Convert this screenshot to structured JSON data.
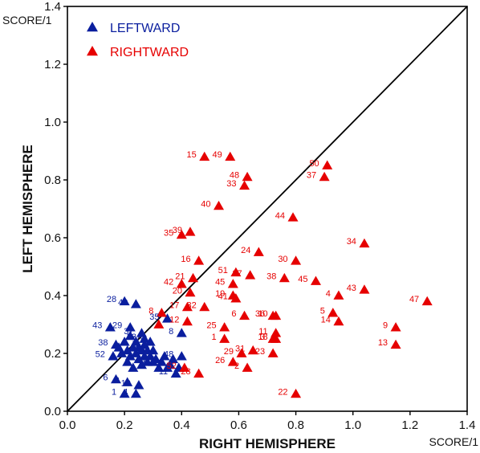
{
  "chart_data": {
    "type": "scatter",
    "xlabel": "RIGHT HEMISPHERE",
    "ylabel": "LEFT HEMISPHERE",
    "x_unit": "SCORE/1",
    "y_unit": "SCORE/1",
    "xlim": [
      0.0,
      1.4
    ],
    "ylim": [
      0.0,
      1.4
    ],
    "x_ticks": [
      "0.0",
      "0.2",
      "0.4",
      "0.6",
      "0.8",
      "1.0",
      "1.2",
      "1.4"
    ],
    "y_ticks": [
      "0.0",
      "0.2",
      "0.4",
      "0.6",
      "0.8",
      "1.0",
      "1.2",
      "1.4"
    ],
    "grid": false,
    "diagonal_line": true,
    "legend_position": "top-left",
    "series": [
      {
        "name": "LEFTWARD",
        "color": "#0a1e9e",
        "marker": "triangle",
        "points": [
          {
            "x": 0.2,
            "y": 0.38,
            "label": "28"
          },
          {
            "x": 0.24,
            "y": 0.37,
            "label": "40"
          },
          {
            "x": 0.35,
            "y": 0.32,
            "label": "35"
          },
          {
            "x": 0.15,
            "y": 0.29,
            "label": "43"
          },
          {
            "x": 0.22,
            "y": 0.29,
            "label": "29"
          },
          {
            "x": 0.26,
            "y": 0.27,
            "label": "37"
          },
          {
            "x": 0.27,
            "y": 0.25,
            "label": "33"
          },
          {
            "x": 0.29,
            "y": 0.24,
            "label": "30"
          },
          {
            "x": 0.4,
            "y": 0.27,
            "label": "8"
          },
          {
            "x": 0.17,
            "y": 0.23,
            "label": "38"
          },
          {
            "x": 0.3,
            "y": 0.21,
            "label": "20"
          },
          {
            "x": 0.16,
            "y": 0.19,
            "label": "52"
          },
          {
            "x": 0.34,
            "y": 0.19,
            "label": "15"
          },
          {
            "x": 0.4,
            "y": 0.19,
            "label": "48"
          },
          {
            "x": 0.3,
            "y": 0.17,
            "label": "5"
          },
          {
            "x": 0.36,
            "y": 0.16,
            "label": "2"
          },
          {
            "x": 0.17,
            "y": 0.11,
            "label": "6"
          },
          {
            "x": 0.21,
            "y": 0.1,
            "label": "3"
          },
          {
            "x": 0.25,
            "y": 0.09,
            "label": "19"
          },
          {
            "x": 0.2,
            "y": 0.06,
            "label": "1"
          },
          {
            "x": 0.24,
            "y": 0.06,
            "label": "4"
          },
          {
            "x": 0.38,
            "y": 0.13,
            "label": "11"
          },
          {
            "x": 0.18,
            "y": 0.22
          },
          {
            "x": 0.19,
            "y": 0.2
          },
          {
            "x": 0.2,
            "y": 0.24
          },
          {
            "x": 0.21,
            "y": 0.21
          },
          {
            "x": 0.21,
            "y": 0.17
          },
          {
            "x": 0.22,
            "y": 0.19
          },
          {
            "x": 0.22,
            "y": 0.26
          },
          {
            "x": 0.23,
            "y": 0.22
          },
          {
            "x": 0.23,
            "y": 0.15
          },
          {
            "x": 0.24,
            "y": 0.2
          },
          {
            "x": 0.24,
            "y": 0.24
          },
          {
            "x": 0.25,
            "y": 0.18
          },
          {
            "x": 0.25,
            "y": 0.22
          },
          {
            "x": 0.26,
            "y": 0.16
          },
          {
            "x": 0.26,
            "y": 0.21
          },
          {
            "x": 0.27,
            "y": 0.19
          },
          {
            "x": 0.27,
            "y": 0.23
          },
          {
            "x": 0.28,
            "y": 0.17
          },
          {
            "x": 0.28,
            "y": 0.21
          },
          {
            "x": 0.29,
            "y": 0.19
          },
          {
            "x": 0.31,
            "y": 0.18
          },
          {
            "x": 0.32,
            "y": 0.15
          },
          {
            "x": 0.33,
            "y": 0.17
          },
          {
            "x": 0.35,
            "y": 0.15
          },
          {
            "x": 0.37,
            "y": 0.18
          },
          {
            "x": 0.39,
            "y": 0.15
          }
        ]
      },
      {
        "name": "RIGHTWARD",
        "color": "#e60000",
        "marker": "triangle",
        "points": [
          {
            "x": 0.48,
            "y": 0.88,
            "label": "15"
          },
          {
            "x": 0.57,
            "y": 0.88,
            "label": "49"
          },
          {
            "x": 0.91,
            "y": 0.85,
            "label": "50"
          },
          {
            "x": 0.9,
            "y": 0.81,
            "label": "37"
          },
          {
            "x": 0.63,
            "y": 0.81,
            "label": "48"
          },
          {
            "x": 0.62,
            "y": 0.78,
            "label": "33"
          },
          {
            "x": 0.53,
            "y": 0.71,
            "label": "40"
          },
          {
            "x": 0.79,
            "y": 0.67,
            "label": "44"
          },
          {
            "x": 0.43,
            "y": 0.62,
            "label": "39"
          },
          {
            "x": 0.4,
            "y": 0.61,
            "label": "35"
          },
          {
            "x": 1.04,
            "y": 0.58,
            "label": "34"
          },
          {
            "x": 0.67,
            "y": 0.55,
            "label": "24"
          },
          {
            "x": 0.8,
            "y": 0.52,
            "label": "30"
          },
          {
            "x": 0.46,
            "y": 0.52,
            "label": "16"
          },
          {
            "x": 0.59,
            "y": 0.48,
            "label": "51"
          },
          {
            "x": 0.64,
            "y": 0.47,
            "label": "27"
          },
          {
            "x": 0.76,
            "y": 0.46,
            "label": "38"
          },
          {
            "x": 0.87,
            "y": 0.45,
            "label": "45"
          },
          {
            "x": 0.44,
            "y": 0.46,
            "label": "21"
          },
          {
            "x": 0.4,
            "y": 0.44,
            "label": "42"
          },
          {
            "x": 0.58,
            "y": 0.44,
            "label": "45"
          },
          {
            "x": 0.43,
            "y": 0.41,
            "label": "20"
          },
          {
            "x": 1.04,
            "y": 0.42,
            "label": "43"
          },
          {
            "x": 0.58,
            "y": 0.4,
            "label": "19"
          },
          {
            "x": 0.59,
            "y": 0.39,
            "label": "41"
          },
          {
            "x": 0.95,
            "y": 0.4,
            "label": "4"
          },
          {
            "x": 1.26,
            "y": 0.38,
            "label": "47"
          },
          {
            "x": 0.42,
            "y": 0.36,
            "label": "17"
          },
          {
            "x": 0.48,
            "y": 0.36,
            "label": "32"
          },
          {
            "x": 0.33,
            "y": 0.34,
            "label": "8"
          },
          {
            "x": 0.93,
            "y": 0.34,
            "label": "5"
          },
          {
            "x": 0.62,
            "y": 0.33,
            "label": "6"
          },
          {
            "x": 0.72,
            "y": 0.33,
            "label": "36"
          },
          {
            "x": 0.73,
            "y": 0.33,
            "label": "10"
          },
          {
            "x": 0.42,
            "y": 0.31,
            "label": "12"
          },
          {
            "x": 0.95,
            "y": 0.31,
            "label": "14"
          },
          {
            "x": 1.15,
            "y": 0.29,
            "label": "9"
          },
          {
            "x": 0.55,
            "y": 0.29,
            "label": "25"
          },
          {
            "x": 0.32,
            "y": 0.3
          },
          {
            "x": 0.73,
            "y": 0.27,
            "label": "11"
          },
          {
            "x": 0.55,
            "y": 0.25,
            "label": "1"
          },
          {
            "x": 0.72,
            "y": 0.25,
            "label": "3"
          },
          {
            "x": 0.73,
            "y": 0.25,
            "label": "18"
          },
          {
            "x": 1.15,
            "y": 0.23,
            "label": "13"
          },
          {
            "x": 0.61,
            "y": 0.2,
            "label": "29"
          },
          {
            "x": 0.65,
            "y": 0.21,
            "label": "31"
          },
          {
            "x": 0.72,
            "y": 0.2,
            "label": "23"
          },
          {
            "x": 0.58,
            "y": 0.17,
            "label": "26"
          },
          {
            "x": 0.63,
            "y": 0.15,
            "label": "2"
          },
          {
            "x": 0.41,
            "y": 0.15,
            "label": "52"
          },
          {
            "x": 0.46,
            "y": 0.13,
            "label": "28"
          },
          {
            "x": 0.8,
            "y": 0.06,
            "label": "22"
          }
        ]
      }
    ]
  }
}
